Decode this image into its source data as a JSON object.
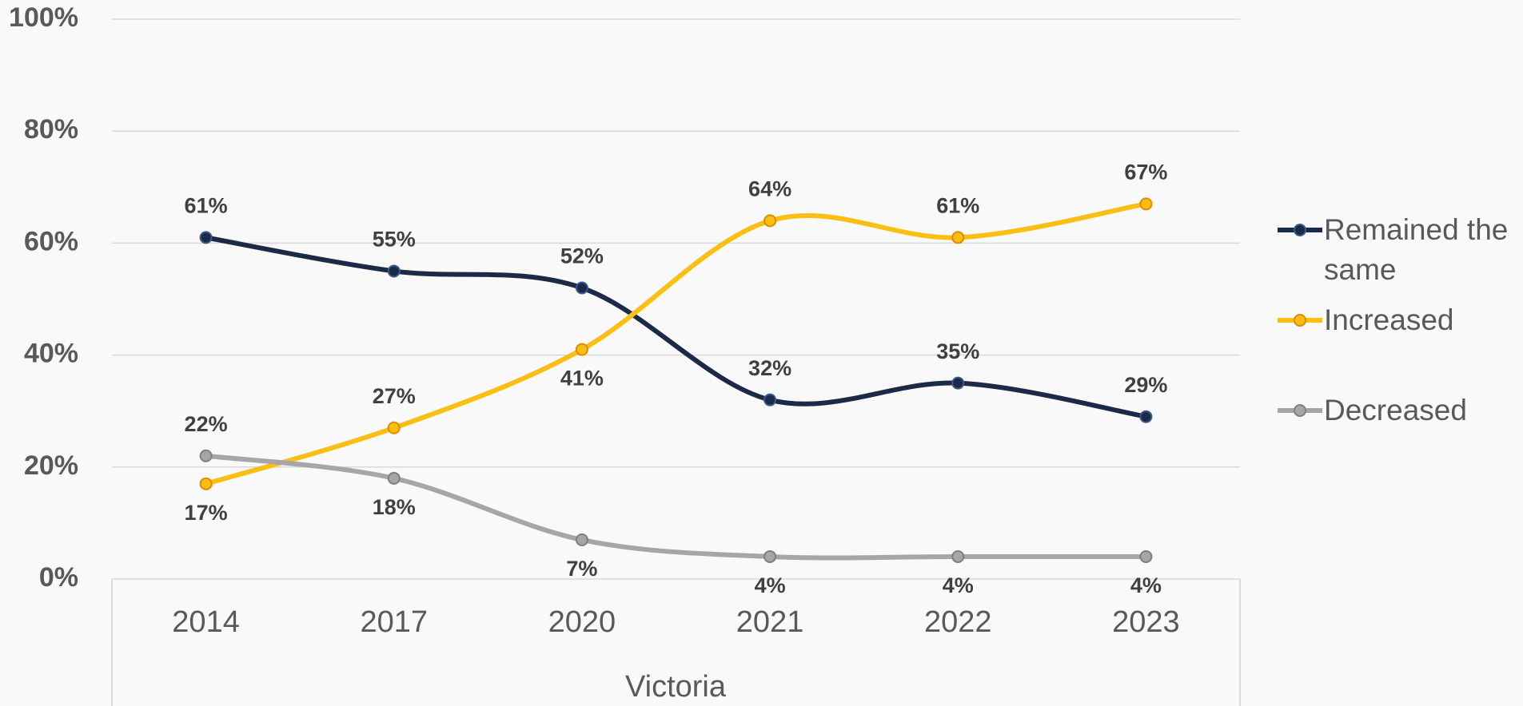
{
  "chart_data": {
    "type": "line",
    "categories": [
      "2014",
      "2017",
      "2020",
      "2021",
      "2022",
      "2023"
    ],
    "x_label": "Victoria",
    "ylim": [
      0,
      100
    ],
    "yticks": [
      {
        "value": 0,
        "label": "0%"
      },
      {
        "value": 20,
        "label": "20%"
      },
      {
        "value": 40,
        "label": "40%"
      },
      {
        "value": 60,
        "label": "60%"
      },
      {
        "value": 80,
        "label": "80%"
      },
      {
        "value": 100,
        "label": "100%"
      }
    ],
    "grid": true,
    "legend": "right",
    "series": [
      {
        "name": "Remained the same",
        "color": "#1b2a47",
        "values": [
          61,
          55,
          52,
          32,
          35,
          29
        ],
        "value_labels": [
          "61%",
          "55%",
          "52%",
          "32%",
          "35%",
          "29%"
        ]
      },
      {
        "name": "Increased",
        "color": "#fbbf14",
        "values": [
          17,
          27,
          41,
          64,
          61,
          67
        ],
        "value_labels": [
          "17%",
          "27%",
          "41%",
          "64%",
          "61%",
          "67%"
        ]
      },
      {
        "name": "Decreased",
        "color": "#a6a6a6",
        "values": [
          22,
          18,
          7,
          4,
          4,
          4
        ],
        "value_labels": [
          "22%",
          "18%",
          "7%",
          "4%",
          "4%",
          "4%"
        ]
      }
    ]
  }
}
